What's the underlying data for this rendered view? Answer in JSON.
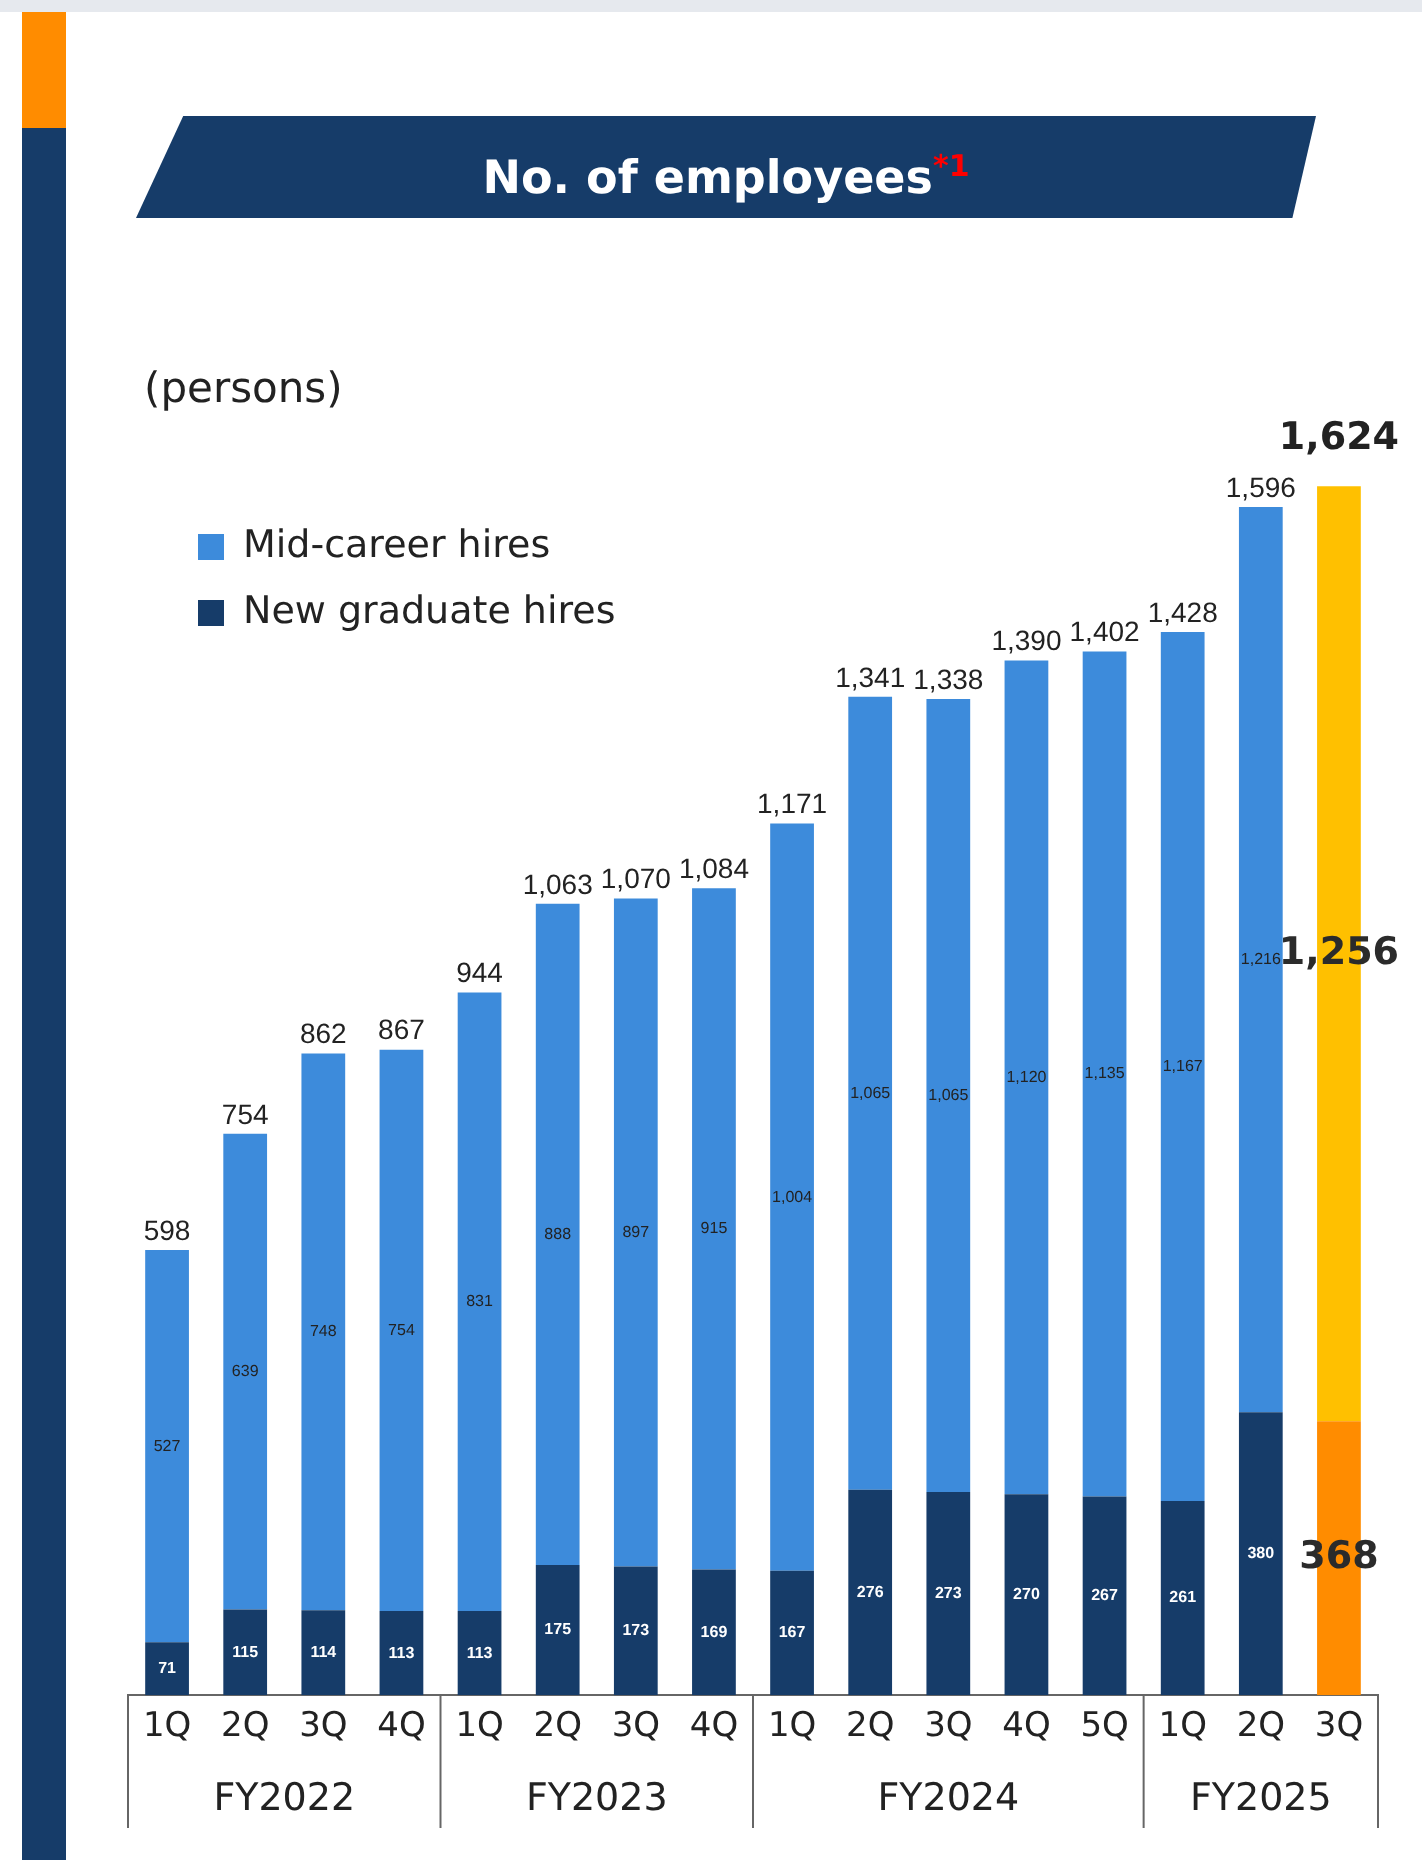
{
  "chart_data": {
    "type": "bar",
    "stacked": true,
    "title": "No. of employees$^{*1}$",
    "ylabel": "(persons)",
    "legend": "top left",
    "categories": [
      "1Q",
      "2Q",
      "3Q",
      "4Q",
      "1Q",
      "2Q",
      "3Q",
      "4Q",
      "1Q",
      "2Q",
      "3Q",
      "4Q",
      "5Q",
      "1Q",
      "2Q",
      "3Q"
    ],
    "annotations": [
      "FY2022",
      "FY2023",
      "FY2024",
      "FY2025"
    ],
    "series": [
      {
        "name": "New graduate hires",
        "color": "#163c69",
        "colors": [
          "#163c69",
          "#163c69",
          "#163c69",
          "#163c69",
          "#163c69",
          "#163c69",
          "#163c69",
          "#163c69",
          "#163c69",
          "#163c69",
          "#163c69",
          "#163c69",
          "#163c69",
          "#163c69",
          "#163c69",
          "#ff8c00"
        ],
        "values": [
          71,
          115,
          114,
          113,
          113,
          175,
          173,
          169,
          167,
          276,
          273,
          270,
          267,
          261,
          380,
          368
        ],
        "value_labels": [
          "71",
          "115",
          "114",
          "113",
          "113",
          "175",
          "173",
          "169",
          "167",
          "276",
          "273",
          "270",
          "267",
          "261",
          "380",
          "368"
        ]
      },
      {
        "name": "Mid-career hires",
        "color": "#3d8bdb",
        "colors": [
          "#3d8bdb",
          "#3d8bdb",
          "#3d8bdb",
          "#3d8bdb",
          "#3d8bdb",
          "#3d8bdb",
          "#3d8bdb",
          "#3d8bdb",
          "#3d8bdb",
          "#3d8bdb",
          "#3d8bdb",
          "#3d8bdb",
          "#3d8bdb",
          "#3d8bdb",
          "#3d8bdb",
          "#ffc000"
        ],
        "values": [
          527,
          639,
          748,
          754,
          831,
          888,
          897,
          915,
          1004,
          1065,
          1065,
          1120,
          1135,
          1167,
          1216,
          1256
        ],
        "value_labels": [
          "527",
          "639",
          "748",
          "754",
          "831",
          "888",
          "897",
          "915",
          "1,004",
          "1,065",
          "1,065",
          "1,120",
          "1,135",
          "1,167",
          "1,216",
          "1,256"
        ]
      }
    ],
    "totals": [
      "598",
      "754",
      "862",
      "867",
      "944",
      "1,063",
      "1,070",
      "1,084",
      "1,171",
      "1,341",
      "1,338",
      "1,390",
      "1,402",
      "1,428",
      "1,596",
      "1,624"
    ]
  }
}
